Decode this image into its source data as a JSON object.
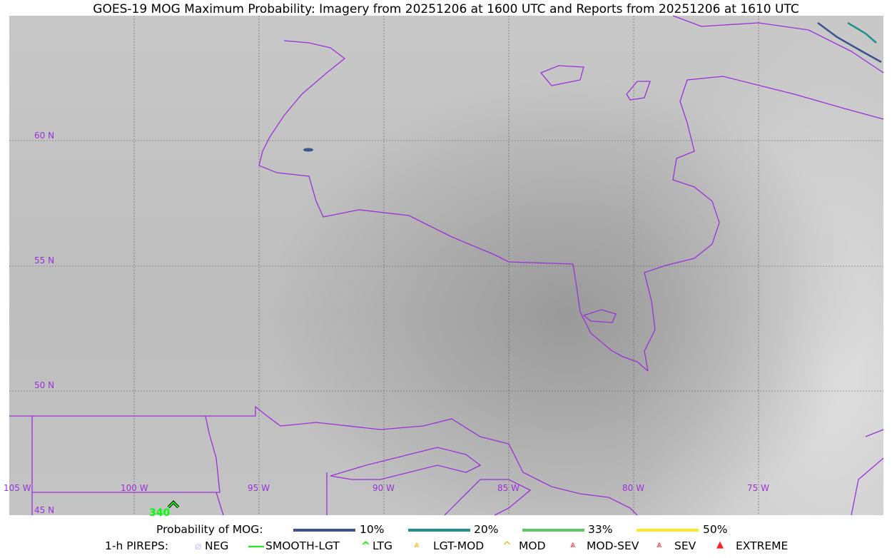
{
  "title": "GOES-19 MOG Maximum Probability: Imagery from 20251206 at 1600 UTC and Reports from 20251206 at 1610 UTC",
  "grid": {
    "lon_labels": [
      "105 W",
      "100 W",
      "95 W",
      "90 W",
      "85 W",
      "80 W",
      "75 W"
    ],
    "lat_labels": [
      "60 N",
      "55 N",
      "50 N",
      "45 N"
    ],
    "color": "#9b30d9"
  },
  "report": {
    "label": "340",
    "type": "LTG",
    "color": "#00ff00"
  },
  "legend": {
    "prob_title": "Probability of MOG:",
    "prob_items": [
      {
        "label": "10%",
        "color": "#3b528b"
      },
      {
        "label": "20%",
        "color": "#21918c"
      },
      {
        "label": "33%",
        "color": "#5ec962"
      },
      {
        "label": "50%",
        "color": "#fde725"
      }
    ],
    "pirep_title": "1-h PIREPS:",
    "pirep_items": [
      {
        "label": "NEG",
        "color": "#c8c8ff"
      },
      {
        "label": "SMOOTH-LGT",
        "color": "#00ff00"
      },
      {
        "label": "LTG",
        "color": "#00ff00"
      },
      {
        "label": "LGT-MOD",
        "color": "#ffb000"
      },
      {
        "label": "MOD",
        "color": "#ffb000"
      },
      {
        "label": "MOD-SEV",
        "color": "#ff2020"
      },
      {
        "label": "SEV",
        "color": "#ff2020"
      },
      {
        "label": "EXTREME",
        "color": "#ff2020"
      }
    ]
  }
}
